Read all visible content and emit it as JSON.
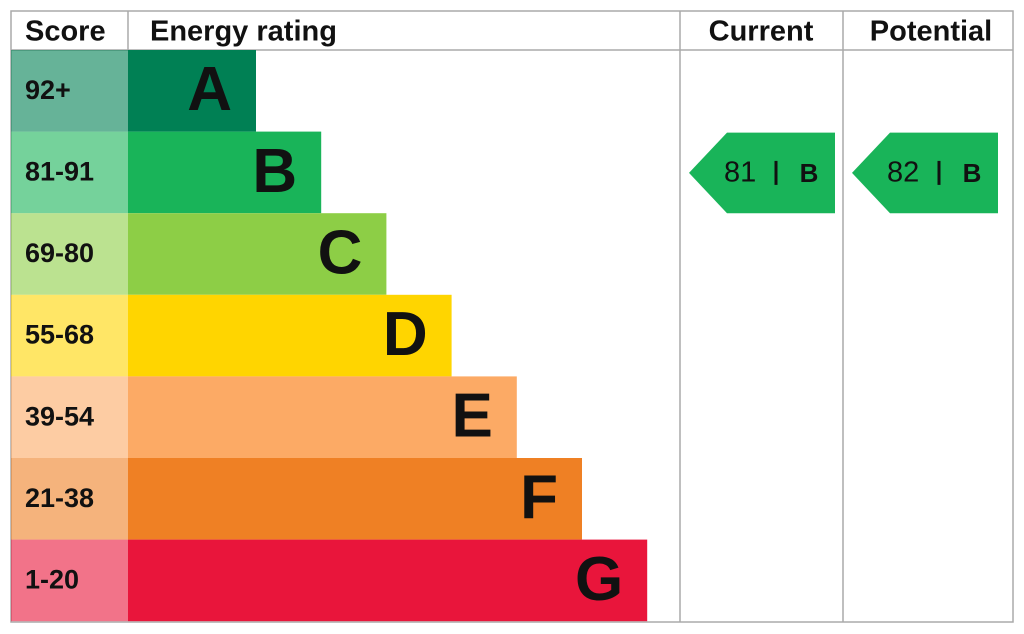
{
  "header": {
    "score": "Score",
    "rating": "Energy rating",
    "current": "Current",
    "potential": "Potential"
  },
  "bands": [
    {
      "score": "92+",
      "letter": "A",
      "color": "#008054"
    },
    {
      "score": "81-91",
      "letter": "B",
      "color": "#19b459"
    },
    {
      "score": "69-80",
      "letter": "C",
      "color": "#8dce46"
    },
    {
      "score": "55-68",
      "letter": "D",
      "color": "#ffd500"
    },
    {
      "score": "39-54",
      "letter": "E",
      "color": "#fcaa65"
    },
    {
      "score": "21-38",
      "letter": "F",
      "color": "#ef8024"
    },
    {
      "score": "1-20",
      "letter": "G",
      "color": "#e9153b"
    }
  ],
  "current": {
    "value": 81,
    "band": "B"
  },
  "potential": {
    "value": 82,
    "band": "B"
  }
}
